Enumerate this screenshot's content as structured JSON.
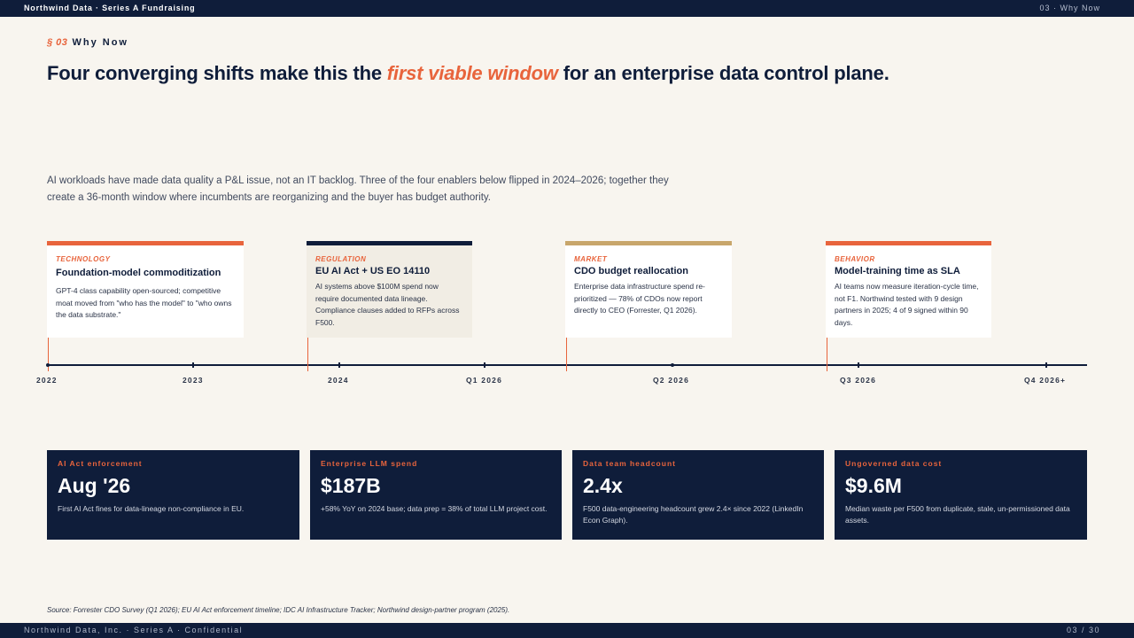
{
  "header": {
    "left": "Northwind  Data  · Series A Fundraising",
    "right": "03 · Why Now"
  },
  "section": {
    "number": "§ 03",
    "label": "Why Now"
  },
  "headline": {
    "before": "Four converging shifts make this the ",
    "accent": "first viable window",
    "after": " for an enterprise  data control plane."
  },
  "intro": "AI workloads have made data quality a P&L issue, not an IT backlog. Three of the four enablers below flipped in 2024–2026; together they create a 36-month window where incumbents are reorganizing and the buyer has budget authority.",
  "cards": [
    {
      "tag": "TECHNOLOGY",
      "title": "Foundation-model commoditization",
      "body": "GPT-4 class capability open-sourced; competitive moat moved from \"who has the model\" to \"who owns the data substrate.\""
    },
    {
      "tag": "REGULATION",
      "title": "EU AI Act + US EO 14110",
      "body": "AI systems above $100M  spend now require documented data lineage. Compliance clauses added to RFPs across F500."
    },
    {
      "tag": "MARKET",
      "title": "CDO budget reallocation",
      "body": "Enterprise  data infrastructure  spend re-prioritized  — 78% of CDOs now report directly to CEO (Forrester,  Q1 2026)."
    },
    {
      "tag": "BEHAVIOR",
      "title": "Model-training time as SLA",
      "body": "AI teams now measure iteration-cycle time, not F1. Northwind  tested with 9 design partners in 2025;  4 of 9 signed within 90 days."
    }
  ],
  "timeline": {
    "labels": [
      "2022",
      "2023",
      "2024",
      "Q1 2026",
      "Q2 2026",
      "Q3 2026",
      "Q4 2026+"
    ]
  },
  "metrics": [
    {
      "label": "AI Act enforcement",
      "value": "Aug '26",
      "desc": "First AI Act fines for data-lineage non-compliance in EU."
    },
    {
      "label": "Enterprise  LLM spend",
      "value": "$187B",
      "desc": "+58% YoY on 2024 base; data prep = 38% of total LLM project cost."
    },
    {
      "label": "Data team headcount",
      "value": "2.4x",
      "desc": "F500 data-engineering headcount grew 2.4× since 2022 (LinkedIn Econ Graph)."
    },
    {
      "label": "Ungoverned  data cost",
      "value": "$9.6M",
      "desc": "Median waste per F500 from duplicate, stale, un-permissioned  data assets."
    }
  ],
  "source": "Source:  Forrester  CDO Survey  (Q1 2026);  EU AI Act enforcement  timeline;  IDC AI Infrastructure   Tracker;  Northwind  design-partner  program  (2025).",
  "footer": {
    "left": "Northwind Data, Inc. · Series A · Confidential",
    "right": "03 / 30"
  },
  "colors": {
    "navy": "#0f1d3a",
    "accent": "#e8643c",
    "gold": "#c8a66b",
    "background": "#f8f5ef"
  }
}
